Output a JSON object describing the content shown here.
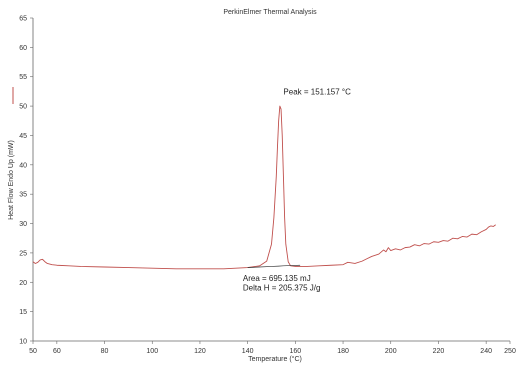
{
  "chart_data": {
    "type": "line",
    "title": "PerkinElmer Thermal Analysis",
    "xlabel": "Temperature (°C)",
    "ylabel": "Heat Flow Endo Up (mW)",
    "xlim": [
      50,
      250
    ],
    "ylim": [
      10,
      65
    ],
    "x_ticks": [
      50,
      60,
      80,
      100,
      120,
      140,
      160,
      180,
      200,
      220,
      240,
      250
    ],
    "x_tick_labels": [
      "50",
      "60",
      "80",
      "100",
      "120",
      "140",
      "160",
      "180",
      "200",
      "220",
      "240",
      "250"
    ],
    "y_ticks": [
      10,
      15,
      20,
      25,
      30,
      35,
      40,
      45,
      50,
      55,
      60,
      65
    ],
    "y_tick_labels": [
      "10",
      "15",
      "20",
      "25",
      "30",
      "35",
      "40",
      "45",
      "50",
      "55",
      "60",
      "65"
    ],
    "grid": false,
    "series": [
      {
        "color": "#c0504d",
        "x": [
          50,
          51,
          52,
          53,
          54,
          55,
          56,
          58,
          60,
          65,
          70,
          80,
          90,
          100,
          110,
          120,
          130,
          140,
          145,
          148,
          150,
          151,
          152,
          152.5,
          153,
          153.5,
          154,
          154.5,
          155,
          155.5,
          156,
          157,
          158,
          160,
          165,
          170,
          175,
          180,
          182,
          185,
          188,
          190,
          192,
          195,
          197,
          198,
          199,
          200,
          202,
          204,
          206,
          208,
          210,
          212,
          214,
          216,
          218,
          220,
          222,
          224,
          226,
          228,
          230,
          232,
          234,
          236,
          238,
          240,
          241,
          242,
          243,
          244
        ],
        "y": [
          23.5,
          23.2,
          23.4,
          23.8,
          23.9,
          23.5,
          23.2,
          23.0,
          22.9,
          22.8,
          22.7,
          22.6,
          22.5,
          22.4,
          22.3,
          22.3,
          22.3,
          22.5,
          22.8,
          23.6,
          26.5,
          31.0,
          38.0,
          43.0,
          47.5,
          50.0,
          49.5,
          45.0,
          38.0,
          31.0,
          26.5,
          23.5,
          22.8,
          22.7,
          22.7,
          22.8,
          22.9,
          23.0,
          23.4,
          23.2,
          23.6,
          24.0,
          24.4,
          24.8,
          25.5,
          25.2,
          25.9,
          25.4,
          25.7,
          25.5,
          25.9,
          26.0,
          26.4,
          26.2,
          26.6,
          26.5,
          26.9,
          26.8,
          27.1,
          27.0,
          27.5,
          27.4,
          27.8,
          27.7,
          28.2,
          28.1,
          28.6,
          29.0,
          29.4,
          29.6,
          29.5,
          29.8
        ]
      },
      {
        "color": "#333333",
        "x": [
          140,
          145,
          150,
          153,
          155,
          158,
          162
        ],
        "y": [
          22.5,
          22.6,
          22.7,
          22.75,
          22.8,
          22.85,
          22.9
        ]
      }
    ],
    "annotations": [
      {
        "text": "Peak = 151.157 °C",
        "x": 155,
        "y": 52
      },
      {
        "text": "Area = 695.135 mJ",
        "x": 138,
        "y": 20.2
      },
      {
        "text": "Delta H = 205.375  J/g",
        "x": 138,
        "y": 18.6
      }
    ]
  },
  "colors": {
    "axis": "#666666",
    "curve": "#c0504d",
    "baseline": "#333333"
  }
}
